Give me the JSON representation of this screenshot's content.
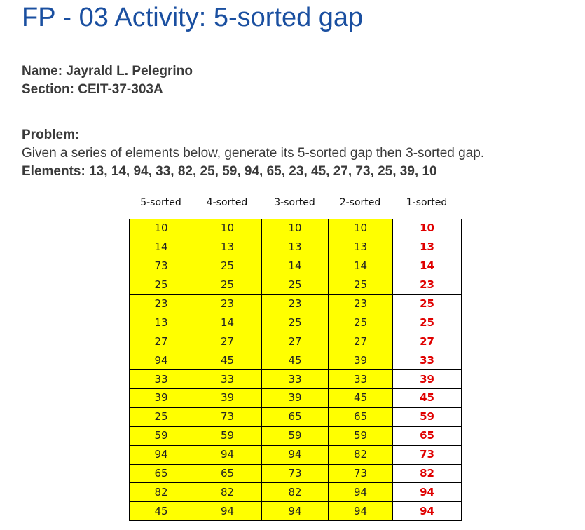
{
  "title": "FP - 03 Activity: 5-sorted gap",
  "student": {
    "name_line": "Name: Jayrald L. Pelegrino",
    "section_line": "Section: CEIT-37-303A"
  },
  "problem": {
    "label": "Problem:",
    "text": "Given a series of elements below, generate its 5-sorted gap then 3-sorted gap.",
    "elements_line": "Elements: 13, 14, 94, 33, 82, 25, 59, 94, 65, 23, 45, 27, 73, 25, 39, 10"
  },
  "table": {
    "headers": [
      "5-sorted",
      "4-sorted",
      "3-sorted",
      "2-sorted",
      "1-sorted"
    ],
    "rows": [
      [
        "10",
        "10",
        "10",
        "10",
        "10"
      ],
      [
        "14",
        "13",
        "13",
        "13",
        "13"
      ],
      [
        "73",
        "25",
        "14",
        "14",
        "14"
      ],
      [
        "25",
        "25",
        "25",
        "25",
        "23"
      ],
      [
        "23",
        "23",
        "23",
        "23",
        "25"
      ],
      [
        "13",
        "14",
        "25",
        "25",
        "25"
      ],
      [
        "27",
        "27",
        "27",
        "27",
        "27"
      ],
      [
        "94",
        "45",
        "45",
        "39",
        "33"
      ],
      [
        "33",
        "33",
        "33",
        "33",
        "39"
      ],
      [
        "39",
        "39",
        "39",
        "45",
        "45"
      ],
      [
        "25",
        "73",
        "65",
        "65",
        "59"
      ],
      [
        "59",
        "59",
        "59",
        "59",
        "65"
      ],
      [
        "94",
        "94",
        "94",
        "82",
        "73"
      ],
      [
        "65",
        "65",
        "73",
        "73",
        "82"
      ],
      [
        "82",
        "82",
        "82",
        "94",
        "94"
      ],
      [
        "45",
        "94",
        "94",
        "94",
        "94"
      ]
    ],
    "colors": {
      "highlight_fill": "#ffff00",
      "final_column_text": "#e00000",
      "title_color": "#1a4fa0"
    }
  }
}
